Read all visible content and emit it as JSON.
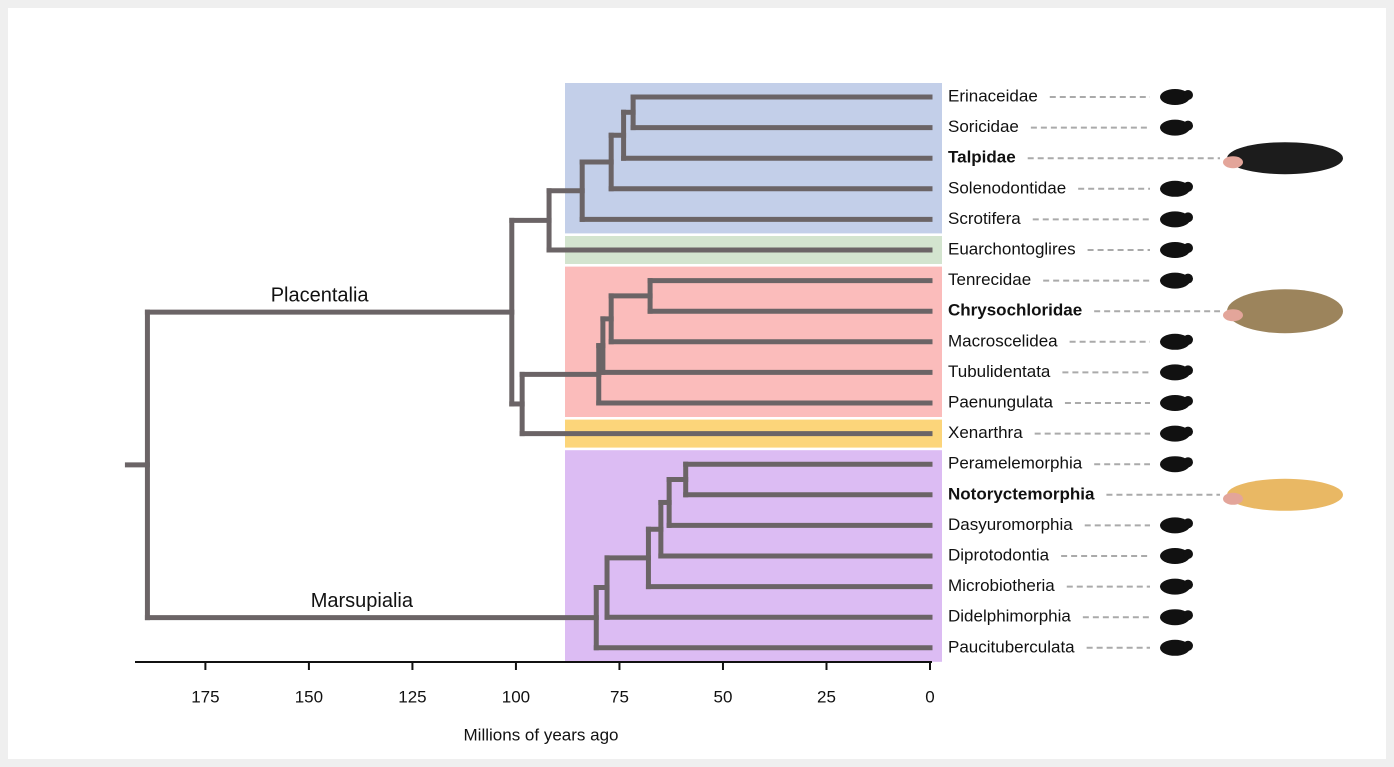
{
  "axis": {
    "xlim": [
      192,
      0
    ],
    "xticks": [
      175,
      150,
      125,
      100,
      75,
      50,
      25,
      0
    ],
    "label": "Millions of years ago"
  },
  "tree": {
    "age": 189,
    "children": [
      {
        "age": 101,
        "label": "Placentalia",
        "children": [
          {
            "age": 92,
            "children": [
              {
                "age": 84,
                "highlight": "#c3cfe9",
                "children": [
                  {
                    "age": 77,
                    "children": [
                      {
                        "age": 74,
                        "children": [
                          {
                            "age": 71.7,
                            "children": [
                              {
                                "label": "Erinaceidae"
                              },
                              {
                                "label": "Soricidae"
                              }
                            ]
                          },
                          {
                            "label": "Talpidae",
                            "bold": true,
                            "image_color": "#1c1c1c"
                          }
                        ]
                      },
                      {
                        "label": "Solenodontidae"
                      }
                    ]
                  },
                  {
                    "label": "Scrotifera"
                  }
                ]
              },
              {
                "label": "Euarchontoglires",
                "highlight": "#d3e4cf"
              }
            ]
          },
          {
            "age": 98.5,
            "children": [
              {
                "age": 80,
                "highlight": "#fbbcbb",
                "children": [
                  {
                    "age": 79,
                    "children": [
                      {
                        "age": 77,
                        "children": [
                          {
                            "age": 67.6,
                            "children": [
                              {
                                "label": "Tenrecidae"
                              },
                              {
                                "label": "Chrysochloridae",
                                "bold": true,
                                "image_color": "#9c845c"
                              }
                            ]
                          },
                          {
                            "label": "Macroscelidea"
                          }
                        ]
                      },
                      {
                        "label": "Tubulidentata"
                      }
                    ]
                  },
                  {
                    "label": "Paenungulata"
                  }
                ]
              },
              {
                "label": "Xenarthra",
                "highlight": "#fcd57a"
              }
            ]
          }
        ]
      },
      {
        "age": 80.6,
        "label": "Marsupialia",
        "highlight": "#dcbcf3",
        "children": [
          {
            "age": 78,
            "children": [
              {
                "age": 68,
                "children": [
                  {
                    "age": 65,
                    "children": [
                      {
                        "age": 63,
                        "children": [
                          {
                            "age": 59,
                            "children": [
                              {
                                "label": "Peramelemorphia"
                              },
                              {
                                "label": "Notoryctemorphia",
                                "bold": true,
                                "image_color": "#e9b864"
                              }
                            ]
                          },
                          {
                            "label": "Dasyuromorphia"
                          }
                        ]
                      },
                      {
                        "label": "Diprotodontia"
                      }
                    ]
                  },
                  {
                    "label": "Microbiotheria"
                  }
                ]
              },
              {
                "label": "Didelphimorphia"
              }
            ]
          },
          {
            "label": "Paucituberculata"
          }
        ]
      }
    ]
  }
}
